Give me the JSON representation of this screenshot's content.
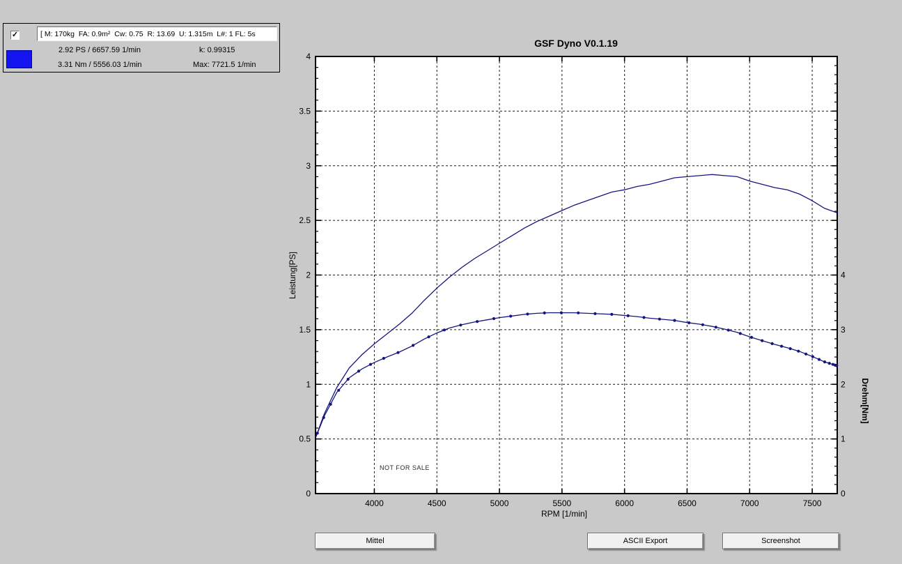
{
  "window": {
    "background_color": "#c9c9c9"
  },
  "legend_panel": {
    "checkbox_checked": true,
    "params_field": "[ M: 170kg  FA: 0.9m²  Cw: 0.75  R: 13.69  U: 1.315m  L#: 1 FL: 5s",
    "series_color": "#1414f0",
    "power_stat": "2.92 PS / 6657.59 1/min",
    "k_stat": "k: 0.99315",
    "torque_stat": "3.31 Nm / 5556.03 1/min",
    "max_stat": "Max: 7721.5 1/min"
  },
  "chart_data": {
    "type": "line",
    "title": "GSF Dyno V0.1.19",
    "xlabel": "RPM [1/min]",
    "ylabel_left": "Leistung[PS]",
    "ylabel_right": "Drehm[Nm]",
    "watermark": "NOT FOR SALE",
    "grid": "dashed",
    "line_color": "#15157d",
    "x_range": [
      3530,
      7700
    ],
    "y_left_range": [
      0,
      4
    ],
    "y_right_range": [
      0,
      8
    ],
    "x_ticks": [
      4000,
      4500,
      5000,
      5500,
      6000,
      6500,
      7000,
      7500
    ],
    "y_left_ticks": [
      0,
      0.5,
      1,
      1.5,
      2,
      2.5,
      3,
      3.5,
      4
    ],
    "y_right_ticks": [
      0,
      1,
      2,
      3,
      4
    ],
    "rpm": [
      3530,
      3600,
      3700,
      3800,
      3900,
      4000,
      4100,
      4200,
      4300,
      4400,
      4500,
      4600,
      4700,
      4800,
      4900,
      5000,
      5100,
      5200,
      5300,
      5400,
      5500,
      5600,
      5700,
      5800,
      5900,
      6000,
      6100,
      6200,
      6300,
      6400,
      6500,
      6600,
      6700,
      6800,
      6900,
      7000,
      7100,
      7200,
      7300,
      7400,
      7500,
      7600,
      7700
    ],
    "series": [
      {
        "name": "Leistung",
        "unit": "PS",
        "axis": "left",
        "style": "solid",
        "values": [
          0.51,
          0.73,
          0.97,
          1.15,
          1.27,
          1.37,
          1.46,
          1.55,
          1.65,
          1.77,
          1.88,
          1.98,
          2.07,
          2.15,
          2.22,
          2.29,
          2.36,
          2.43,
          2.49,
          2.54,
          2.59,
          2.64,
          2.68,
          2.72,
          2.76,
          2.78,
          2.81,
          2.83,
          2.86,
          2.89,
          2.9,
          2.91,
          2.92,
          2.91,
          2.9,
          2.86,
          2.83,
          2.8,
          2.78,
          2.74,
          2.68,
          2.61,
          2.57
        ]
      },
      {
        "name": "Drehmoment",
        "unit": "Nm",
        "axis": "right",
        "style": "line-with-dot-markers",
        "values": [
          1.02,
          1.42,
          1.85,
          2.12,
          2.28,
          2.4,
          2.5,
          2.59,
          2.7,
          2.83,
          2.94,
          3.03,
          3.09,
          3.14,
          3.18,
          3.22,
          3.25,
          3.28,
          3.3,
          3.31,
          3.31,
          3.31,
          3.3,
          3.29,
          3.28,
          3.26,
          3.24,
          3.21,
          3.19,
          3.17,
          3.13,
          3.1,
          3.06,
          3.01,
          2.95,
          2.87,
          2.8,
          2.73,
          2.67,
          2.6,
          2.51,
          2.41,
          2.34
        ],
        "marker_rpm": [
          3545,
          3595,
          3650,
          3715,
          3790,
          3875,
          3970,
          4075,
          4190,
          4310,
          4435,
          4560,
          4690,
          4822,
          4955,
          5090,
          5225,
          5360,
          5495,
          5630,
          5765,
          5898,
          6028,
          6155,
          6280,
          6400,
          6515,
          6625,
          6730,
          6830,
          6925,
          7015,
          7100,
          7180,
          7255,
          7325,
          7390,
          7450,
          7505,
          7555,
          7600,
          7637,
          7666,
          7683,
          7692,
          7696
        ]
      }
    ]
  },
  "buttons": [
    {
      "label": "Mittel"
    },
    {
      "label": "ASCII Export"
    },
    {
      "label": "Screenshot"
    }
  ]
}
